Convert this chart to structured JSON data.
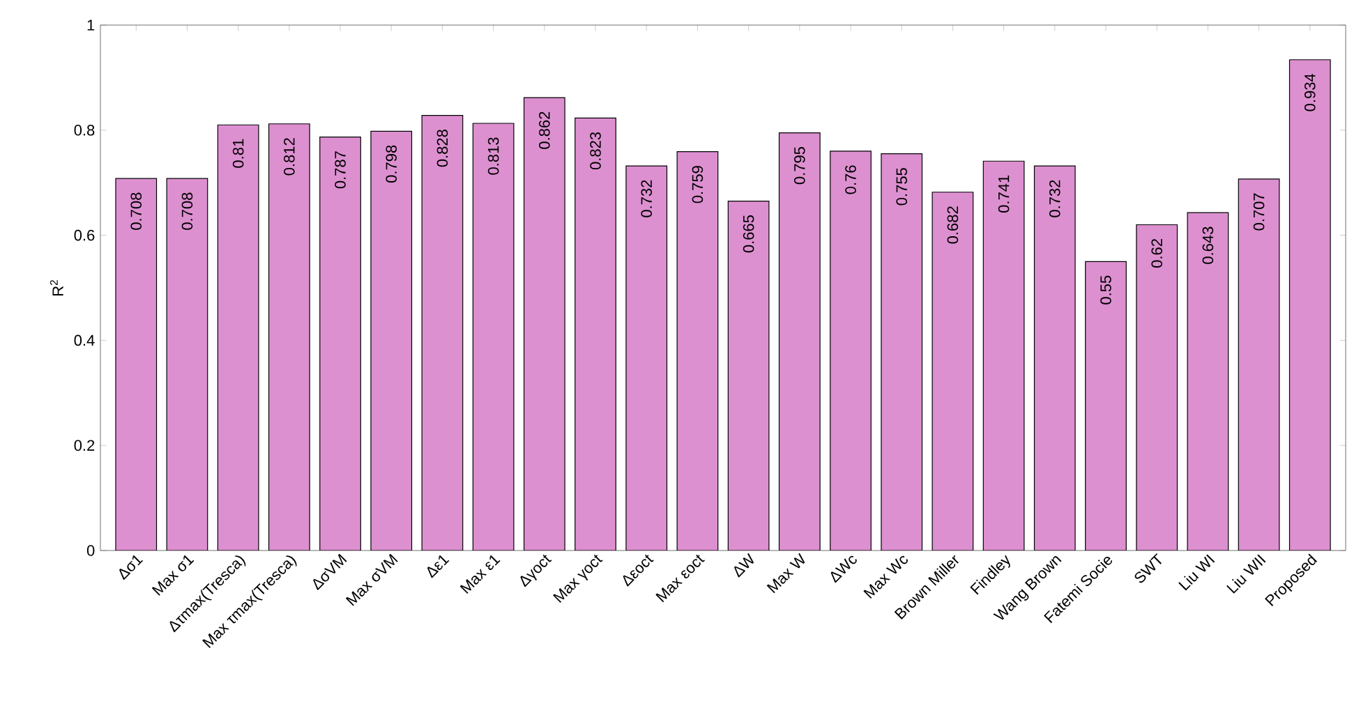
{
  "chart_data": {
    "type": "bar",
    "ylabel": "R$^{2}$",
    "categories": [
      "Δσ1",
      "Max σ1",
      "Δτmax(Tresca)",
      "Max τmax(Tresca)",
      "ΔσVM",
      "Max σVM",
      "Δε1",
      "Max ε1",
      "Δγoct",
      "Max γoct",
      "Δεoct",
      "Max εoct",
      "ΔW",
      "Max W",
      "ΔWc",
      "Max Wc",
      "Brown Miller",
      "Findley",
      "Wang Brown",
      "Fatemi Socie",
      "SWT",
      "Liu WI",
      "Liu WII",
      "Proposed"
    ],
    "values": [
      0.708,
      0.708,
      0.81,
      0.812,
      0.787,
      0.798,
      0.828,
      0.813,
      0.862,
      0.823,
      0.732,
      0.759,
      0.665,
      0.795,
      0.76,
      0.755,
      0.682,
      0.741,
      0.732,
      0.55,
      0.62,
      0.643,
      0.707,
      0.934
    ],
    "color": "#dd90d0",
    "ylim": [
      0,
      1
    ],
    "yticks": [
      0,
      0.2,
      0.4,
      0.6,
      0.8,
      1
    ],
    "data_labels": true
  }
}
